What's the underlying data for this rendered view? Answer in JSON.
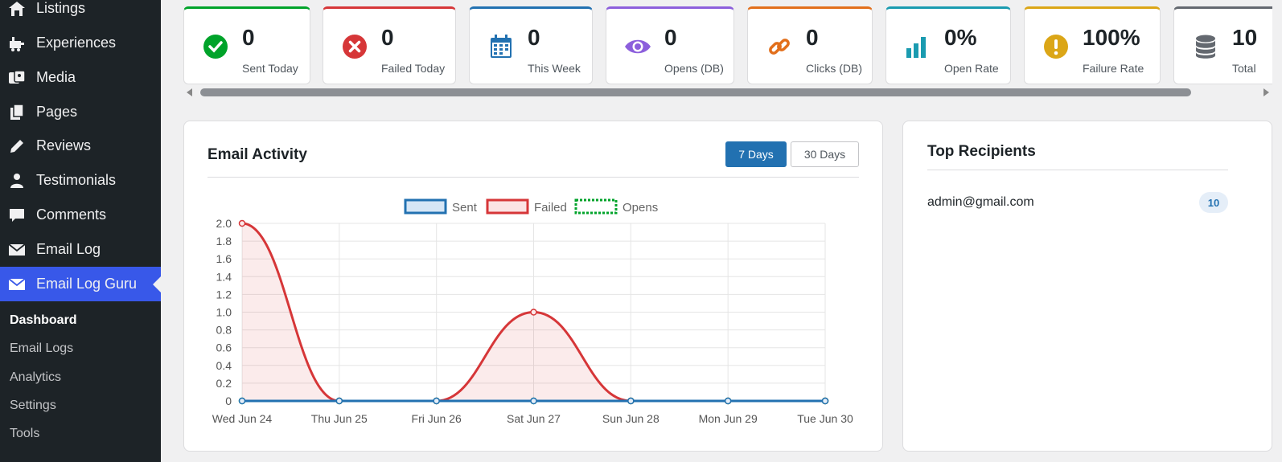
{
  "sidebar": {
    "items": [
      {
        "label": "Listings",
        "icon": "listings-icon"
      },
      {
        "label": "Experiences",
        "icon": "experiences-icon"
      },
      {
        "label": "Media",
        "icon": "media-icon"
      },
      {
        "label": "Pages",
        "icon": "pages-icon"
      },
      {
        "label": "Reviews",
        "icon": "reviews-icon"
      },
      {
        "label": "Testimonials",
        "icon": "testimonials-icon"
      },
      {
        "label": "Comments",
        "icon": "comments-icon"
      },
      {
        "label": "Email Log",
        "icon": "email-icon"
      },
      {
        "label": "Email Log Guru",
        "icon": "email-icon"
      }
    ],
    "submenu": [
      {
        "label": "Dashboard"
      },
      {
        "label": "Email Logs"
      },
      {
        "label": "Analytics"
      },
      {
        "label": "Settings"
      },
      {
        "label": "Tools"
      }
    ]
  },
  "stats": [
    {
      "value": "0",
      "label": "Sent Today",
      "icon": "check-circle-icon",
      "color": "#00a32a"
    },
    {
      "value": "0",
      "label": "Failed Today",
      "icon": "x-circle-icon",
      "color": "#d63638"
    },
    {
      "value": "0",
      "label": "This Week",
      "icon": "calendar-icon",
      "color": "#2271b1"
    },
    {
      "value": "0",
      "label": "Opens (DB)",
      "icon": "eye-icon",
      "color": "#8c5fdc"
    },
    {
      "value": "0",
      "label": "Clicks (DB)",
      "icon": "link-icon",
      "color": "#e26f1b"
    },
    {
      "value": "0%",
      "label": "Open Rate",
      "icon": "bar-chart-icon",
      "color": "#1a9bb0"
    },
    {
      "value": "100%",
      "label": "Failure Rate",
      "icon": "exclamation-icon",
      "color": "#dba617"
    },
    {
      "value": "10",
      "label": "Total",
      "icon": "database-icon",
      "color": "#646970"
    }
  ],
  "activity": {
    "title": "Email Activity",
    "range_7": "7 Days",
    "range_30": "30 Days"
  },
  "recipients": {
    "title": "Top Recipients",
    "items": [
      {
        "email": "admin@gmail.com",
        "count": "10"
      }
    ]
  },
  "chart_data": {
    "type": "line",
    "categories": [
      "Wed Jun 24",
      "Thu Jun 25",
      "Fri Jun 26",
      "Sat Jun 27",
      "Sun Jun 28",
      "Mon Jun 29",
      "Tue Jun 30"
    ],
    "series": [
      {
        "name": "Sent",
        "values": [
          0,
          0,
          0,
          0,
          0,
          0,
          0
        ],
        "color": "#2271b1"
      },
      {
        "name": "Failed",
        "values": [
          2,
          0,
          0,
          1,
          0,
          0,
          0
        ],
        "color": "#d63638"
      },
      {
        "name": "Opens",
        "values": [
          0,
          0,
          0,
          0,
          0,
          0,
          0
        ],
        "color": "#00a32a"
      }
    ],
    "yticks": [
      "0",
      "0.2",
      "0.4",
      "0.6",
      "0.8",
      "1.0",
      "1.2",
      "1.4",
      "1.6",
      "1.8",
      "2.0"
    ],
    "ylim": [
      0,
      2
    ],
    "legend_position": "top",
    "grid": true
  }
}
